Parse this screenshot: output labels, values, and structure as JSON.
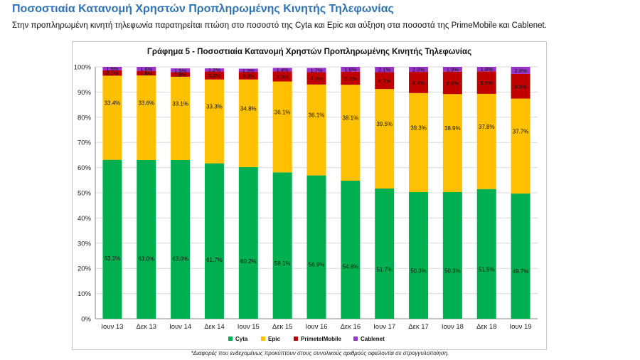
{
  "page": {
    "title": "Ποσοστιαία Κατανομή Χρηστών Προπληρωμένης Κινητής Τηλεφωνίας",
    "subtitle": "Στην προπληρωμένη κινητή τηλεφωνία παρατηρείται πτώση στο ποσοστό της Cyta και Epic και αύξηση στα ποσοστά της PrimeMobile και Cablenet.",
    "footnote": "*Διαφορές που ενδεχομένως προκύπτουν στους συνολικούς αριθμούς οφείλονται σε στρογγυλοποίηση."
  },
  "colors": {
    "Cyta": "#00b050",
    "Epic": "#ffc000",
    "PrimeTelMobile": "#c00000",
    "Cablenet": "#9933cc",
    "grid": "#d9d9d9",
    "axis": "#888888"
  },
  "chart_data": {
    "type": "bar",
    "stacked": true,
    "title": "Γράφημα 5 - Ποσοστιαία Κατανομή Χρηστών Προπληρωμένης Κινητής Τηλεφωνίας",
    "xlabel": "",
    "ylabel": "",
    "ylim": [
      0,
      100
    ],
    "yticks": [
      "0%",
      "10%",
      "20%",
      "30%",
      "40%",
      "50%",
      "60%",
      "70%",
      "80%",
      "90%",
      "100%"
    ],
    "grid": true,
    "legend_position": "bottom",
    "categories": [
      "Ιουν 13",
      "Δεκ 13",
      "Ιουν 14",
      "Δεκ 14",
      "Ιουν 15",
      "Δεκ 15",
      "Ιουν 16",
      "Δεκ 16",
      "Ιουν 17",
      "Δεκ 17",
      "Ιουν 18",
      "Δεκ 18",
      "Ιουν 19"
    ],
    "series": [
      {
        "name": "Cyta",
        "values": [
          63.1,
          63.0,
          63.0,
          61.7,
          60.2,
          58.1,
          56.9,
          54.8,
          51.7,
          50.3,
          50.3,
          51.5,
          49.7
        ],
        "labels": [
          "63.1%",
          "63.0%",
          "63.0%",
          "61.7%",
          "60.2%",
          "58.1%",
          "56.9%",
          "54.8%",
          "51.7%",
          "50.3%",
          "50.3%",
          "51.5%",
          "49.7%"
        ]
      },
      {
        "name": "Epic",
        "values": [
          33.4,
          33.6,
          33.1,
          33.3,
          34.8,
          36.1,
          36.1,
          38.1,
          39.5,
          39.3,
          38.9,
          37.8,
          37.7
        ],
        "labels": [
          "33.4%",
          "33.6%",
          "33.1%",
          "33.3%",
          "34.8%",
          "36.1%",
          "36.1%",
          "38.1%",
          "39.5%",
          "39.3%",
          "38.9%",
          "37.8%",
          "37.7%"
        ]
      },
      {
        "name": "PrimetelMobile",
        "values": [
          2.1,
          1.8,
          1.8,
          3.2,
          3.0,
          4.0,
          4.9,
          5.2,
          6.7,
          8.4,
          8.9,
          8.9,
          9.8
        ],
        "labels": [
          "2.1%",
          "1.8%",
          "1.8%",
          "3.2%",
          "3.0%",
          "4.0%",
          "4.9%",
          "5.2%",
          "6.7%",
          "8.4%",
          "8.9%",
          "8.9%",
          "9.8%"
        ]
      },
      {
        "name": "Cablenet",
        "values": [
          1.5,
          1.6,
          1.5,
          1.2,
          1.3,
          1.4,
          1.7,
          1.9,
          2.1,
          2.0,
          1.9,
          1.8,
          2.8
        ],
        "labels": [
          "1.5%",
          "1.6%",
          "1.5%",
          "1.2%",
          "1.3%",
          "1.4%",
          "1.7%",
          "1.9%",
          "2.1%",
          "2.0%",
          "1.9%",
          "1.8%",
          "2.8%"
        ]
      }
    ]
  }
}
